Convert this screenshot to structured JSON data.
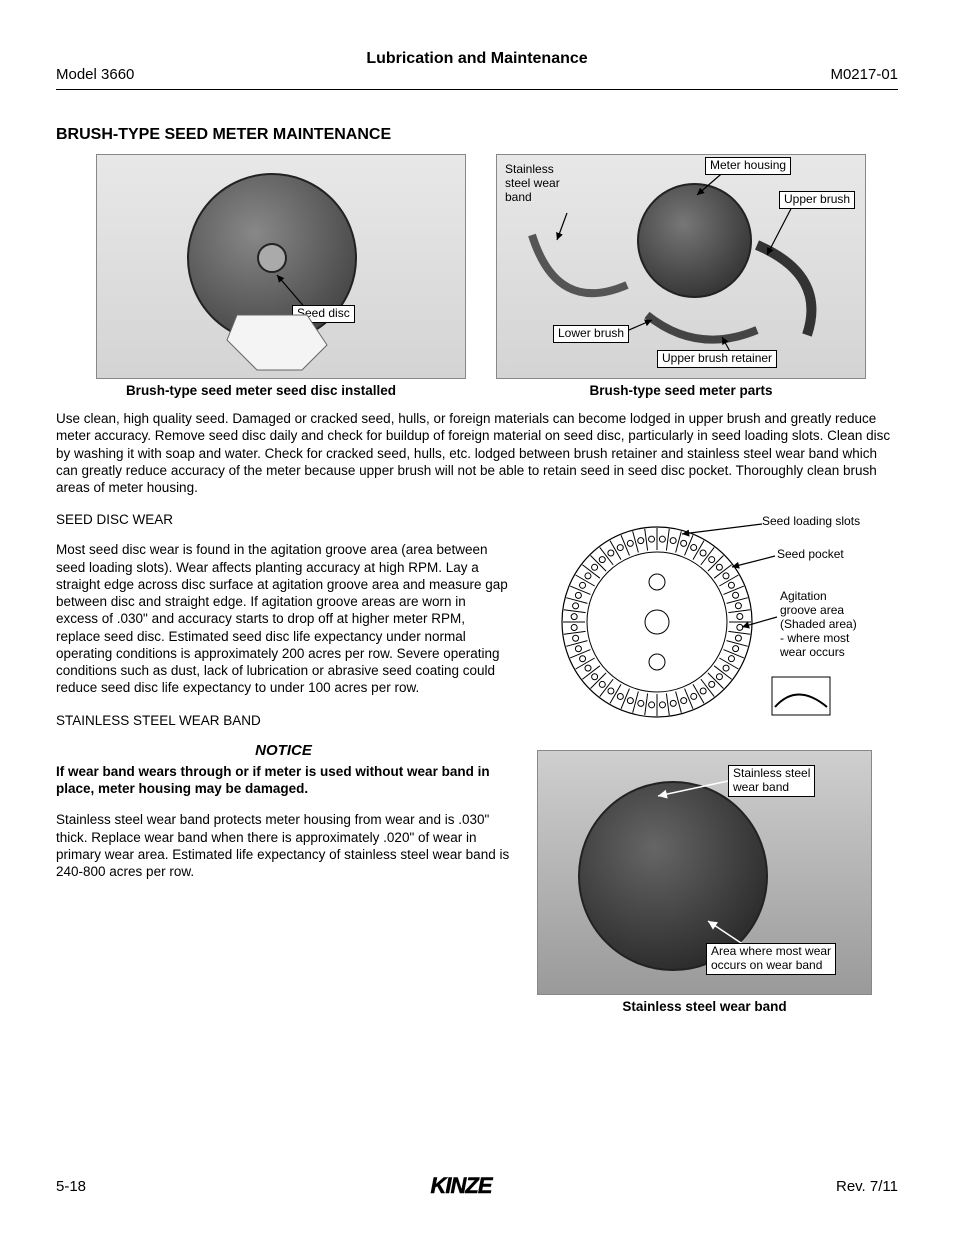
{
  "header": {
    "left": "Model 3660",
    "center": "Lubrication and Maintenance",
    "right": "M0217-01"
  },
  "section_title": "BRUSH-TYPE SEED METER MAINTENANCE",
  "fig1": {
    "caption": "Brush-type seed meter seed disc installed",
    "label_seed_disc": "Seed disc"
  },
  "fig2": {
    "caption": "Brush-type seed meter parts",
    "labels": {
      "meter_housing": "Meter housing",
      "upper_brush": "Upper brush",
      "stainless_band": "Stainless\nsteel wear\nband",
      "lower_brush": "Lower brush",
      "upper_brush_retainer": "Upper brush retainer"
    }
  },
  "intro_para": "Use clean, high quality seed. Damaged or cracked seed, hulls, or foreign materials can become lodged in upper brush and greatly reduce meter accuracy. Remove seed disc daily and check for buildup of foreign material on seed disc, particularly in seed loading slots. Clean disc by washing it with soap and water. Check for cracked seed, hulls, etc. lodged between brush retainer and stainless steel wear band which can greatly reduce accuracy of the meter because upper brush will not be able to retain seed in seed disc pocket.  Thoroughly clean brush areas of meter housing.",
  "seed_disc_wear": {
    "heading": "SEED DISC WEAR",
    "body": "Most seed disc wear is found in the agitation groove area (area between seed loading slots). Wear affects planting accuracy at high RPM. Lay a straight edge across disc surface at agitation groove area and measure gap between disc and straight edge. If agitation groove areas are worn in excess of .030\" and accuracy starts to drop off at higher meter RPM, replace seed disc. Estimated seed disc life expectancy under normal operating conditions is approximately 200 acres per row. Severe operating conditions such as dust, lack of lubrication or abrasive seed coating could reduce seed disc life expectancy to under 100 acres per row."
  },
  "wear_band": {
    "heading": "STAINLESS STEEL WEAR BAND",
    "notice_title": "NOTICE",
    "notice_body": "If wear band wears through or if meter is used without wear band in place, meter housing may be damaged.",
    "body": "Stainless steel wear band protects meter housing from wear and is .030\" thick. Replace wear band when there is approximately .020\" of wear in primary wear area. Estimated life expectancy of stainless steel wear band is 240-800 acres per row."
  },
  "diagram_labels": {
    "seed_loading_slots": "Seed loading slots",
    "seed_pocket": "Seed pocket",
    "agitation": "Agitation\ngroove area\n(Shaded area)\n- where most\nwear occurs"
  },
  "photo2": {
    "caption": "Stainless steel wear band",
    "label_band": "Stainless steel\nwear band",
    "label_wear_area": "Area where most wear\noccurs on wear band"
  },
  "footer": {
    "page": "5-18",
    "logo": "KINZE",
    "rev": "Rev. 7/11"
  },
  "colors": {
    "text": "#000000",
    "bg": "#ffffff",
    "figure_bg": "#d8d8d8",
    "figure_border": "#888888"
  }
}
